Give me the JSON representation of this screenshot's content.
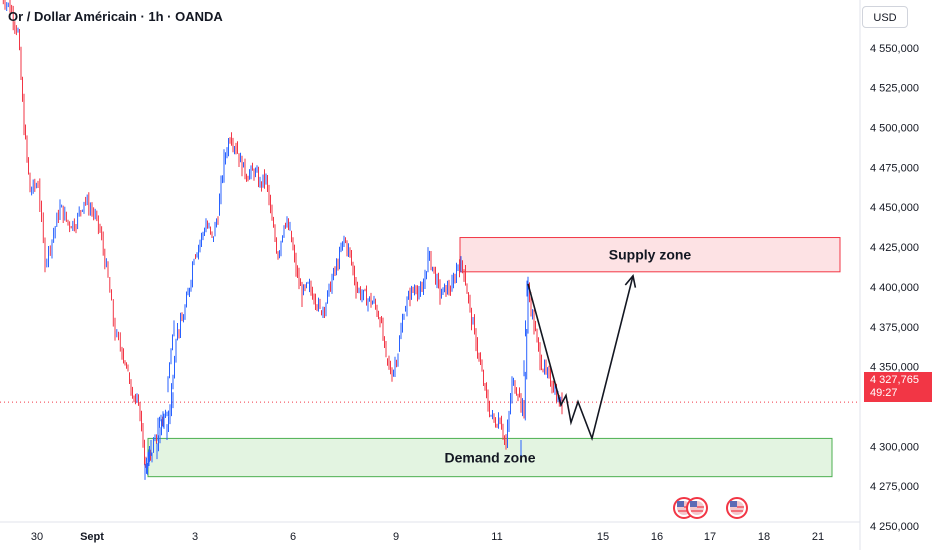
{
  "header": {
    "title": "Or / Dollar Américain · 1h · OANDA"
  },
  "currency": "USD",
  "price_tag": {
    "price": "4 327,765",
    "countdown": "49:27"
  },
  "colors": {
    "up": "#2962ff",
    "down": "#f23645",
    "supply_fill": "#fde2e4",
    "supply_border": "#f23645",
    "demand_fill": "#e3f4e1",
    "demand_border": "#4caf50",
    "projection": "#131722"
  },
  "chart_data": {
    "type": "candlestick",
    "ylim": [
      4235000,
      4580000
    ],
    "yticks": [
      {
        "value": 4550000,
        "label": "4 550,000"
      },
      {
        "value": 4525000,
        "label": "4 525,000"
      },
      {
        "value": 4500000,
        "label": "4 500,000"
      },
      {
        "value": 4475000,
        "label": "4 475,000"
      },
      {
        "value": 4450000,
        "label": "4 450,000"
      },
      {
        "value": 4425000,
        "label": "4 425,000"
      },
      {
        "value": 4400000,
        "label": "4 400,000"
      },
      {
        "value": 4375000,
        "label": "4 375,000"
      },
      {
        "value": 4350000,
        "label": "4 350,000"
      },
      {
        "value": 4300000,
        "label": "4 300,000"
      },
      {
        "value": 4275000,
        "label": "4 275,000"
      },
      {
        "value": 4250000,
        "label": "4 250,000"
      }
    ],
    "xticks": [
      {
        "pos": 37,
        "label": "30"
      },
      {
        "pos": 92,
        "label": "Sept"
      },
      {
        "pos": 195,
        "label": "3"
      },
      {
        "pos": 293,
        "label": "6"
      },
      {
        "pos": 396,
        "label": "9"
      },
      {
        "pos": 497,
        "label": "11"
      },
      {
        "pos": 603,
        "label": "15"
      },
      {
        "pos": 657,
        "label": "16"
      },
      {
        "pos": 710,
        "label": "17"
      },
      {
        "pos": 764,
        "label": "18"
      },
      {
        "pos": 818,
        "label": "21"
      }
    ],
    "path": [
      [
        0,
        4585000
      ],
      [
        10,
        4575000
      ],
      [
        18,
        4560000
      ],
      [
        24,
        4500000
      ],
      [
        30,
        4460000
      ],
      [
        38,
        4465000
      ],
      [
        45,
        4415000
      ],
      [
        52,
        4430000
      ],
      [
        60,
        4450000
      ],
      [
        68,
        4440000
      ],
      [
        76,
        4440000
      ],
      [
        84,
        4455000
      ],
      [
        92,
        4448000
      ],
      [
        100,
        4435000
      ],
      [
        108,
        4405000
      ],
      [
        115,
        4370000
      ],
      [
        122,
        4360000
      ],
      [
        128,
        4345000
      ],
      [
        134,
        4332000
      ],
      [
        140,
        4320000
      ],
      [
        146,
        4285000
      ],
      [
        152,
        4298000
      ],
      [
        158,
        4312000
      ],
      [
        164,
        4318000
      ],
      [
        170,
        4325000
      ],
      [
        176,
        4370000
      ],
      [
        182,
        4378000
      ],
      [
        188,
        4395000
      ],
      [
        194,
        4420000
      ],
      [
        200,
        4428000
      ],
      [
        206,
        4440000
      ],
      [
        212,
        4430000
      ],
      [
        218,
        4445000
      ],
      [
        224,
        4480000
      ],
      [
        230,
        4495000
      ],
      [
        236,
        4488000
      ],
      [
        242,
        4475000
      ],
      [
        248,
        4470000
      ],
      [
        254,
        4472000
      ],
      [
        260,
        4465000
      ],
      [
        266,
        4468000
      ],
      [
        272,
        4440000
      ],
      [
        278,
        4420000
      ],
      [
        284,
        4440000
      ],
      [
        290,
        4435000
      ],
      [
        296,
        4410000
      ],
      [
        302,
        4395000
      ],
      [
        308,
        4400000
      ],
      [
        314,
        4395000
      ],
      [
        320,
        4385000
      ],
      [
        326,
        4390000
      ],
      [
        332,
        4405000
      ],
      [
        338,
        4415000
      ],
      [
        344,
        4430000
      ],
      [
        350,
        4420000
      ],
      [
        356,
        4400000
      ],
      [
        362,
        4395000
      ],
      [
        368,
        4392000
      ],
      [
        374,
        4390000
      ],
      [
        380,
        4380000
      ],
      [
        386,
        4355000
      ],
      [
        392,
        4345000
      ],
      [
        398,
        4360000
      ],
      [
        404,
        4385000
      ],
      [
        410,
        4395000
      ],
      [
        416,
        4400000
      ],
      [
        422,
        4395000
      ],
      [
        428,
        4420000
      ],
      [
        434,
        4410000
      ],
      [
        440,
        4395000
      ],
      [
        446,
        4398000
      ],
      [
        452,
        4400000
      ],
      [
        458,
        4415000
      ],
      [
        464,
        4410000
      ],
      [
        470,
        4385000
      ],
      [
        476,
        4365000
      ],
      [
        482,
        4345000
      ],
      [
        488,
        4325000
      ],
      [
        494,
        4315000
      ],
      [
        500,
        4318000
      ],
      [
        506,
        4300000
      ],
      [
        512,
        4340000
      ],
      [
        518,
        4335000
      ],
      [
        524,
        4320000
      ],
      [
        528,
        4400000
      ],
      [
        534,
        4375000
      ],
      [
        540,
        4355000
      ],
      [
        546,
        4345000
      ],
      [
        552,
        4340000
      ],
      [
        558,
        4330000
      ],
      [
        562,
        4325000
      ]
    ],
    "extra_ups": [
      [
        [
          145,
          4285000
        ],
        [
          151,
          4300000
        ]
      ],
      [
        [
          157,
          4298000
        ],
        [
          163,
          4318000
        ]
      ],
      [
        [
          167,
          4310000
        ],
        [
          173,
          4330000
        ]
      ],
      [
        [
          521,
          4300000
        ],
        [
          527,
          4400000
        ]
      ],
      [
        [
          168,
          4340000
        ],
        [
          174,
          4375000
        ]
      ]
    ],
    "zones": [
      {
        "name": "Supply zone",
        "x0": 460,
        "x1": 840,
        "y_top": 4431000,
        "y_bottom": 4409500
      },
      {
        "name": "Demand zone",
        "x0": 148,
        "x1": 832,
        "y_top": 4305000,
        "y_bottom": 4281000
      }
    ],
    "projection": [
      [
        528,
        4402000
      ],
      [
        561,
        4326000
      ],
      [
        566,
        4332000
      ],
      [
        571,
        4315000
      ],
      [
        578,
        4328000
      ],
      [
        592,
        4305000
      ],
      [
        633,
        4407000
      ]
    ],
    "current_price": 4327765,
    "events": [
      684,
      697,
      737
    ]
  }
}
